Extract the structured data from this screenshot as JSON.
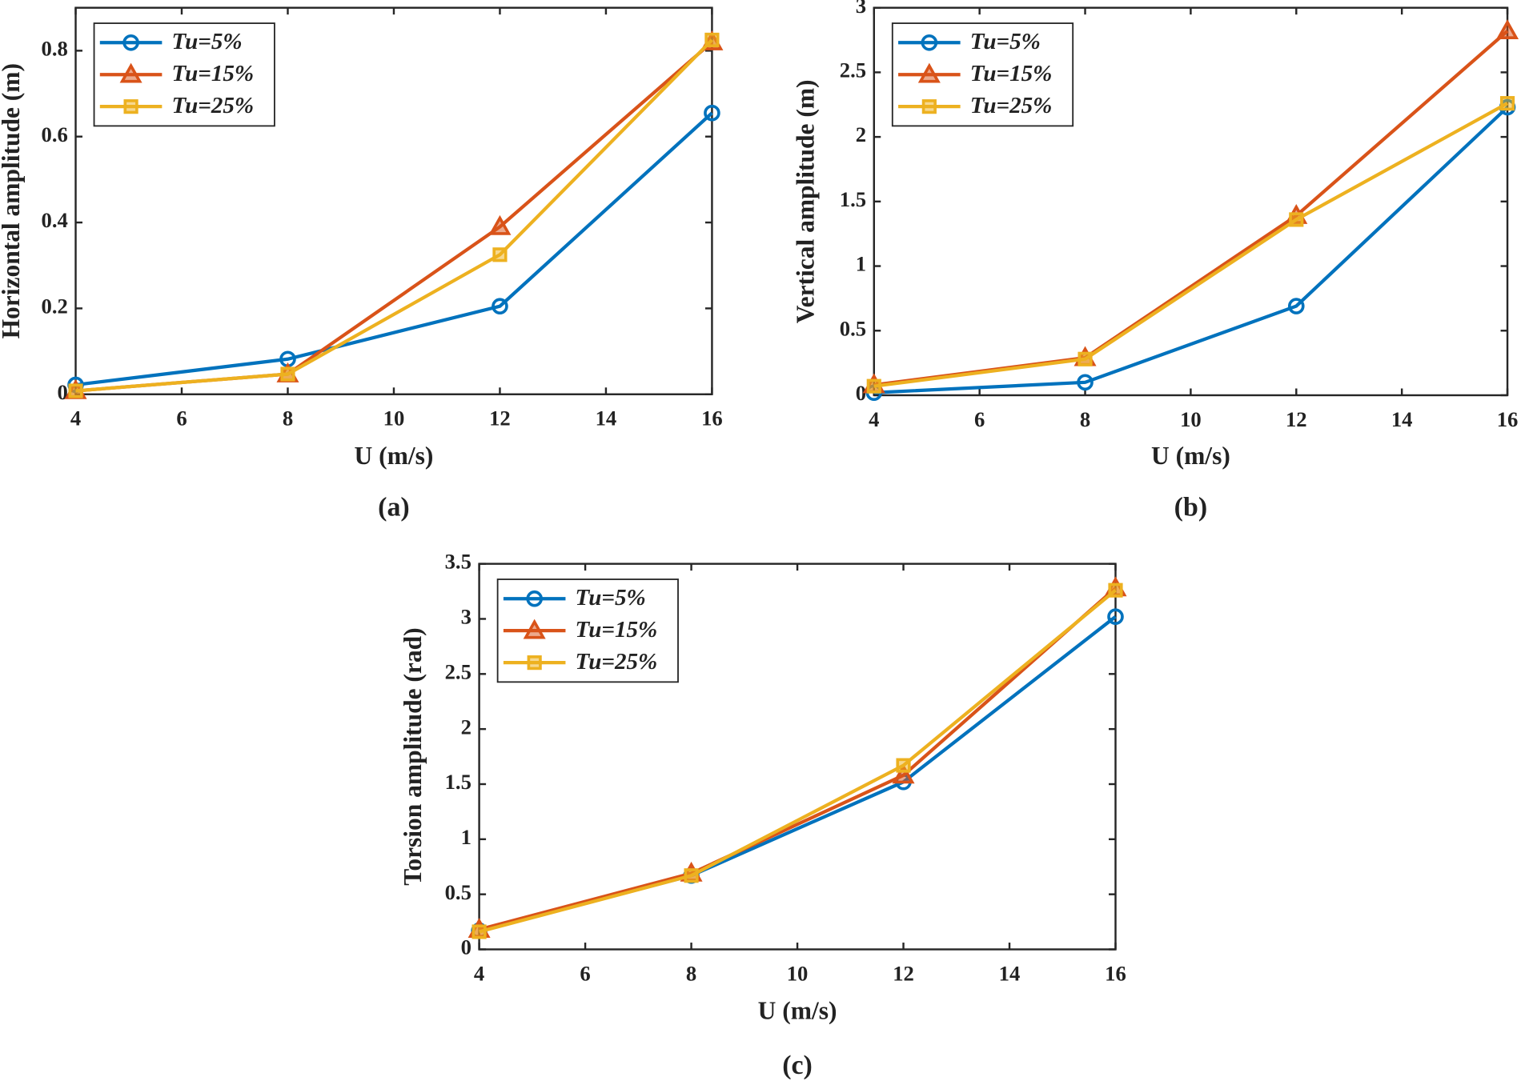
{
  "chart_data": [
    {
      "type": "line",
      "panel_label": "(a)",
      "x_label": "U (m/s)",
      "y_label": "Horizontal amplitude (m)",
      "x": [
        4,
        8,
        12,
        16
      ],
      "xlim": [
        4,
        16
      ],
      "xticks": [
        4,
        6,
        8,
        10,
        12,
        14,
        16
      ],
      "ylim": [
        0,
        0.9
      ],
      "yticks": [
        0,
        0.2,
        0.4,
        0.6,
        0.8
      ],
      "legend": "upper left",
      "series": [
        {
          "name": "Tu=5%",
          "color": "#0072BD",
          "marker": "circle",
          "values": [
            0.022,
            0.082,
            0.205,
            0.655
          ]
        },
        {
          "name": "Tu=15%",
          "color": "#D95319",
          "marker": "triangle",
          "values": [
            0.008,
            0.047,
            0.39,
            0.82
          ]
        },
        {
          "name": "Tu=25%",
          "color": "#EDB120",
          "marker": "square",
          "values": [
            0.008,
            0.047,
            0.325,
            0.825
          ]
        }
      ]
    },
    {
      "type": "line",
      "panel_label": "(b)",
      "x_label": "U (m/s)",
      "y_label": "Vertical amplitude (m)",
      "x": [
        4,
        8,
        12,
        16
      ],
      "xlim": [
        4,
        16
      ],
      "xticks": [
        4,
        6,
        8,
        10,
        12,
        14,
        16
      ],
      "ylim": [
        0,
        3
      ],
      "yticks": [
        0,
        0.5,
        1,
        1.5,
        2,
        2.5,
        3
      ],
      "legend": "upper left",
      "series": [
        {
          "name": "Tu=5%",
          "color": "#0072BD",
          "marker": "circle",
          "values": [
            0.02,
            0.1,
            0.69,
            2.23
          ]
        },
        {
          "name": "Tu=15%",
          "color": "#D95319",
          "marker": "triangle",
          "values": [
            0.08,
            0.29,
            1.39,
            2.82
          ]
        },
        {
          "name": "Tu=25%",
          "color": "#EDB120",
          "marker": "square",
          "values": [
            0.07,
            0.28,
            1.36,
            2.26
          ]
        }
      ]
    },
    {
      "type": "line",
      "panel_label": "(c)",
      "x_label": "U (m/s)",
      "y_label": "Torsion amplitude (rad)",
      "x": [
        4,
        8,
        12,
        16
      ],
      "xlim": [
        4,
        16
      ],
      "xticks": [
        4,
        6,
        8,
        10,
        12,
        14,
        16
      ],
      "ylim": [
        0,
        3.5
      ],
      "yticks": [
        0,
        0.5,
        1,
        1.5,
        2,
        2.5,
        3,
        3.5
      ],
      "legend": "upper left",
      "series": [
        {
          "name": "Tu=5%",
          "color": "#0072BD",
          "marker": "circle",
          "values": [
            0.17,
            0.67,
            1.52,
            3.02
          ]
        },
        {
          "name": "Tu=15%",
          "color": "#D95319",
          "marker": "triangle",
          "values": [
            0.18,
            0.69,
            1.58,
            3.28
          ]
        },
        {
          "name": "Tu=25%",
          "color": "#EDB120",
          "marker": "square",
          "values": [
            0.16,
            0.67,
            1.67,
            3.26
          ]
        }
      ]
    }
  ]
}
